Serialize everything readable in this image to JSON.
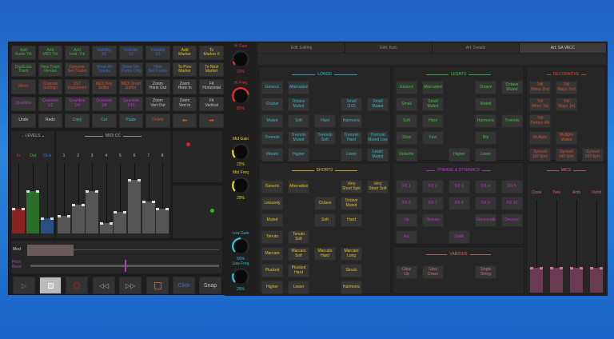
{
  "colors": {
    "green": "#3fae3f",
    "blue": "#3a6fc6",
    "yellow": "#e0c020",
    "red": "#d84a2a",
    "magenta": "#b43cc0",
    "cyan": "#38b8c8",
    "cream": "#d8cfa0",
    "white": "#c8c8c8"
  },
  "top_buttons": [
    [
      [
        "Add\nAudio Trk",
        "green"
      ],
      [
        "Add\nMIDI Trk",
        "green"
      ],
      [
        "Add\nInstr. Trk",
        "green"
      ],
      [
        "Visibility\nX1",
        "blue"
      ],
      [
        "Visibility\nX2",
        "blue"
      ],
      [
        "Visibility\nX3",
        "blue"
      ],
      [
        "Add\nMarker",
        "yellow"
      ],
      [
        "To\nMarker X",
        "yellow"
      ]
    ],
    [
      [
        "Duplicate\nTrack",
        "green"
      ],
      [
        "New Track\nVersion",
        "green"
      ],
      [
        "Rename\nSel.Tracks",
        "red"
      ],
      [
        "Show All\nTracks",
        "blue"
      ],
      [
        "Show Sel.\nTracks Only",
        "blue"
      ],
      [
        "Hide\nSel Tracks",
        "blue"
      ],
      [
        "To Prev\nMarker",
        "yellow"
      ],
      [
        "To Next\nMarker",
        "yellow"
      ]
    ],
    [
      [
        "Mixer",
        "red"
      ],
      [
        "Channel\nSettings",
        "red"
      ],
      [
        "VST\nInstrument",
        "red"
      ],
      [
        "MIDI Key\nEditor",
        "red"
      ],
      [
        "MIDI Drum\nEditor",
        "red"
      ],
      [
        "Zoom\nHoriz Out",
        "white"
      ],
      [
        "Zoom\nHoriz In",
        "white"
      ],
      [
        "Fit\nHorizontal",
        "white"
      ]
    ],
    [
      [
        "Quantize",
        "magenta"
      ],
      [
        "Quantize\n1/2",
        "magenta"
      ],
      [
        "Quantize\n1/4",
        "magenta"
      ],
      [
        "Quantize\n1/8",
        "magenta"
      ],
      [
        "Quantize\n1/16",
        "magenta"
      ],
      [
        "Zoom\nVert Out",
        "white"
      ],
      [
        "Zoom\nVert In",
        "white"
      ],
      [
        "Fit\nVertical",
        "white"
      ]
    ],
    [
      [
        "Undo",
        "cream"
      ],
      [
        "Redo",
        "cream"
      ],
      [
        "Copy",
        "cyan"
      ],
      [
        "Cut",
        "cyan"
      ],
      [
        "Paste",
        "cyan"
      ],
      [
        "Delete",
        "red"
      ],
      [
        "⬅",
        "red"
      ],
      [
        "➡",
        "red"
      ]
    ]
  ],
  "levels": {
    "title": "LEVELS",
    "meters": [
      {
        "label": "In",
        "value": 35,
        "color": "#8a2222"
      },
      {
        "label": "Out",
        "value": 60,
        "color": "#2a6e2a"
      },
      {
        "label": "Click",
        "value": 22,
        "color": "#2a4e80"
      }
    ]
  },
  "midi_cc": {
    "title": "MIDI CC",
    "faders": [
      {
        "label": "1",
        "value": 25
      },
      {
        "label": "2",
        "value": 41
      },
      {
        "label": "3",
        "value": 60
      },
      {
        "label": "4",
        "value": 15
      },
      {
        "label": "5",
        "value": 31
      },
      {
        "label": "6",
        "value": 76
      },
      {
        "label": "7",
        "value": 45
      },
      {
        "label": "8",
        "value": 35
      }
    ]
  },
  "mod": {
    "label": "Mod",
    "value": 40
  },
  "pitch_bend": {
    "label": "Pitch\nBend",
    "value": 50
  },
  "transport": {
    "click": "Click",
    "snap": "Snap"
  },
  "knobs": [
    {
      "label": "Hi Gain",
      "value": "10%",
      "color": "#e03030",
      "pct": 10
    },
    {
      "label": "Hi Freq",
      "value": "80%",
      "color": "#e03030",
      "pct": 80
    },
    {
      "label": "Mid Gain",
      "value": "22%",
      "color": "#e0d020",
      "pct": 22
    },
    {
      "label": "Mid Freq",
      "value": "29%",
      "color": "#e0d020",
      "pct": 29
    },
    {
      "label": "Low Gain",
      "value": "50%",
      "color": "#30c0d0",
      "pct": 50
    },
    {
      "label": "Low Freq",
      "value": "25%",
      "color": "#30c0d0",
      "pct": 25
    }
  ],
  "tabs": [
    {
      "label": "Edit: Editing",
      "active": false
    },
    {
      "label": "Edit: Auto",
      "active": false
    },
    {
      "label": "Art: Details",
      "active": false
    },
    {
      "label": "Art: SA VACC",
      "active": true
    }
  ],
  "sections": {
    "longs": {
      "title": "LONGS",
      "color": "#38b8c8",
      "rows": [
        [
          "Generic",
          "Alternative",
          "",
          "",
          ""
        ],
        [
          "Octave",
          "Octave\nMuted",
          "",
          "Small\n(1/2)",
          "Small\nMuted"
        ],
        [
          "Muted",
          "Soft",
          "Hard",
          "Harmonic",
          ""
        ],
        [
          "Tremolo",
          "Tremolo\nMuted",
          "Tremolo\nSoft",
          "Tremolo\nHard",
          "Tremolo\nMuted Low"
        ],
        [
          "Vibrato",
          "Higher",
          "",
          "Lower",
          "Lower\nMuted"
        ]
      ]
    },
    "shorts": {
      "title": "SHORTS",
      "color": "#e0c020",
      "rows": [
        [
          "Generic",
          "Alternative",
          "",
          "Very\nShort Spic",
          "Very\nShort Soft"
        ],
        [
          "Leisurely",
          "",
          "Octave",
          "Octave\nMuted",
          ""
        ],
        [
          "Muted",
          "",
          "Soft",
          "Hard",
          ""
        ],
        [
          "Tenuto",
          "Tenuto\nSoft",
          "",
          "",
          ""
        ],
        [
          "Marcato",
          "Marcato\nSoft",
          "Marcato\nHard",
          "Marcato\nLong",
          ""
        ],
        [
          "Plucked",
          "Plucked\nHard",
          "",
          "Struck",
          ""
        ],
        [
          "Higher",
          "Lower",
          "",
          "Harmonic",
          ""
        ]
      ]
    },
    "legato": {
      "title": "LEGATO",
      "color": "#3fc03f",
      "rows": [
        [
          "Generic",
          "Alternative",
          "",
          "Octave",
          "Octave\nMuted"
        ],
        [
          "Small",
          "Small\nMuted",
          "",
          "Muted",
          ""
        ],
        [
          "Soft",
          "Hard",
          "",
          "Harmonic",
          "Tremolo"
        ],
        [
          "Slow",
          "Fast",
          "",
          "Rip",
          ""
        ],
        [
          "Detache",
          "",
          "Higher",
          "Lower",
          ""
        ]
      ]
    },
    "phrase": {
      "title": "PHRASE & DYNAMICS",
      "color": "#b43cc0",
      "rows": [
        [
          "FX 1",
          "FX 2",
          "FX 3",
          "FX 4",
          "FX 5"
        ],
        [
          "FX 6",
          "FX 7",
          "FX 8",
          "FX 9",
          "FX 10"
        ],
        [
          "Up",
          "Sweep",
          "",
          "Crescendo",
          "Decresc"
        ],
        [
          "Arc",
          "",
          "Glide",
          "",
          ""
        ]
      ]
    },
    "various": {
      "title": "VARIOUS",
      "color": "#c8706a",
      "rows": [
        [
          "Gliss\nUp",
          "Gliss\nDown",
          "",
          "Single\nString",
          ""
        ]
      ]
    },
    "decorative": {
      "title": "DECORATIVE",
      "color": "#d05030",
      "rows": [
        [
          "Trill\nMinor 2nd",
          "Trill\nMajor 2nd",
          ""
        ],
        [
          "Trill\nMinor 3rd",
          "Trill\nMajor 3rd",
          ""
        ],
        [
          "Trill\nPerfect 4th",
          "",
          ""
        ],
        [
          "Multiple",
          "Multiple\nMuted",
          ""
        ],
        [
          "Synced\n120 bpm",
          "Synced\n140 bpm",
          "Synced\n160 bpm"
        ]
      ]
    }
  },
  "mics": {
    "title": "MICS",
    "color": "#d0608a",
    "faders": [
      {
        "label": "Close",
        "value": 27
      },
      {
        "label": "Tree",
        "value": 27
      },
      {
        "label": "Amb",
        "value": 27
      },
      {
        "label": "Ovhd",
        "value": 27
      }
    ]
  }
}
